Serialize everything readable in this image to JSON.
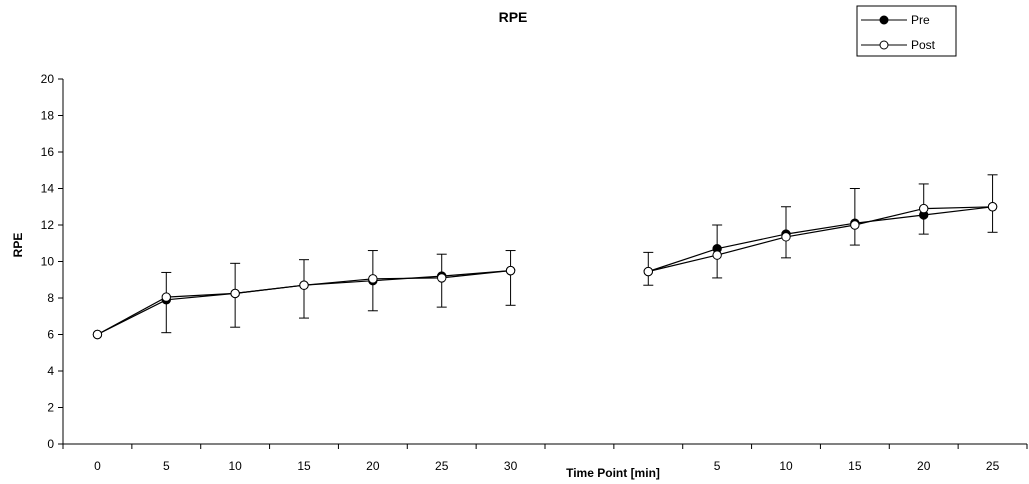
{
  "chart_data": {
    "type": "line",
    "title": "RPE",
    "xlabel": "Time Point [min]",
    "ylabel": "RPE",
    "ylim": [
      0,
      20
    ],
    "yticks": [
      0,
      2,
      4,
      6,
      8,
      10,
      12,
      14,
      16,
      18,
      20
    ],
    "categories": [
      "0",
      "5",
      "10",
      "15",
      "20",
      "25",
      "30",
      "",
      "",
      "5",
      "10",
      "15",
      "20",
      "25"
    ],
    "grid": false,
    "legend_position": "top-right",
    "series": [
      {
        "name": "Pre",
        "marker": "filled-circle",
        "color": "#000000",
        "values": [
          6.0,
          7.9,
          8.25,
          8.7,
          8.95,
          9.2,
          9.5,
          null,
          9.45,
          10.7,
          11.5,
          12.1,
          12.55,
          13.0
        ]
      },
      {
        "name": "Post",
        "marker": "open-circle",
        "color": "#ffffff",
        "values": [
          6.0,
          8.05,
          8.25,
          8.7,
          9.05,
          9.1,
          9.5,
          null,
          9.45,
          10.35,
          11.35,
          12.0,
          12.9,
          13.0
        ],
        "error_upper": [
          null,
          9.4,
          9.9,
          10.1,
          10.6,
          10.4,
          10.6,
          null,
          10.5,
          12.0,
          13.0,
          14.0,
          14.25,
          14.75
        ],
        "error_lower": [
          null,
          6.1,
          6.4,
          6.9,
          7.3,
          7.5,
          7.6,
          null,
          8.7,
          9.1,
          10.2,
          10.9,
          11.5,
          11.6
        ]
      }
    ]
  }
}
